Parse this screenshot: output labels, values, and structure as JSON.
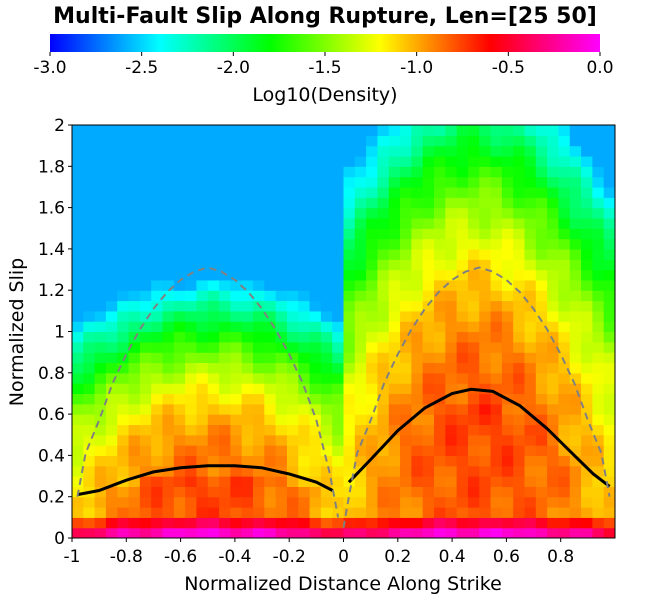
{
  "chart_data": {
    "type": "heatmap",
    "title": "Multi-Fault Slip Along Rupture, Len=[25 50]",
    "xlabel": "Normalized Distance Along Strike",
    "ylabel": "Normalized Slip",
    "xlim": [
      -1,
      1
    ],
    "ylim": [
      0,
      2
    ],
    "x_ticks": [
      "-1",
      "-0.8",
      "-0.6",
      "-0.4",
      "-0.2",
      "0",
      "0.2",
      "0.4",
      "0.6",
      "0.8"
    ],
    "y_ticks": [
      "0",
      "0.2",
      "0.4",
      "0.6",
      "0.8",
      "1",
      "1.2",
      "1.4",
      "1.6",
      "1.8",
      "2"
    ],
    "colorbar": {
      "label": "Log10(Density)",
      "range": [
        -3.0,
        0.0
      ],
      "ticks": [
        "-3.0",
        "-2.5",
        "-2.0",
        "-1.5",
        "-1.0",
        "-0.5",
        "0.0"
      ],
      "colormap": [
        "#0000ff",
        "#00ffff",
        "#00ff00",
        "#ffff00",
        "#ff0000",
        "#ff00ff"
      ]
    },
    "series": [
      {
        "style": "solid",
        "color": "#000000",
        "x": [
          -0.98,
          -0.9,
          -0.8,
          -0.7,
          -0.6,
          -0.5,
          -0.4,
          -0.3,
          -0.2,
          -0.1,
          -0.04
        ],
        "y": [
          0.21,
          0.23,
          0.28,
          0.32,
          0.34,
          0.35,
          0.35,
          0.34,
          0.31,
          0.27,
          0.23
        ]
      },
      {
        "style": "solid",
        "color": "#000000",
        "x": [
          0.02,
          0.1,
          0.2,
          0.3,
          0.4,
          0.47,
          0.55,
          0.65,
          0.75,
          0.85,
          0.92,
          0.98
        ],
        "y": [
          0.27,
          0.38,
          0.52,
          0.63,
          0.7,
          0.72,
          0.71,
          0.64,
          0.53,
          0.4,
          0.31,
          0.25
        ]
      },
      {
        "style": "dashed",
        "color": "#808080",
        "x": [
          -0.98,
          -0.95,
          -0.9,
          -0.85,
          -0.8,
          -0.75,
          -0.7,
          -0.65,
          -0.6,
          -0.55,
          -0.5,
          -0.45,
          -0.4,
          -0.35,
          -0.3,
          -0.25,
          -0.2,
          -0.15,
          -0.1,
          -0.05,
          -0.02
        ],
        "y": [
          0.2,
          0.41,
          0.57,
          0.75,
          0.89,
          1.01,
          1.11,
          1.19,
          1.25,
          1.29,
          1.31,
          1.29,
          1.25,
          1.19,
          1.11,
          1.01,
          0.89,
          0.75,
          0.57,
          0.31,
          0.1
        ]
      },
      {
        "style": "dashed",
        "color": "#808080",
        "x": [
          0.0,
          0.02,
          0.05,
          0.1,
          0.15,
          0.2,
          0.25,
          0.3,
          0.35,
          0.4,
          0.45,
          0.5,
          0.55,
          0.6,
          0.65,
          0.7,
          0.75,
          0.8,
          0.85,
          0.9,
          0.95,
          0.98
        ],
        "y": [
          0.05,
          0.2,
          0.41,
          0.57,
          0.75,
          0.89,
          1.01,
          1.11,
          1.19,
          1.25,
          1.29,
          1.31,
          1.29,
          1.25,
          1.19,
          1.11,
          1.01,
          0.89,
          0.75,
          0.57,
          0.41,
          0.2
        ]
      }
    ]
  }
}
